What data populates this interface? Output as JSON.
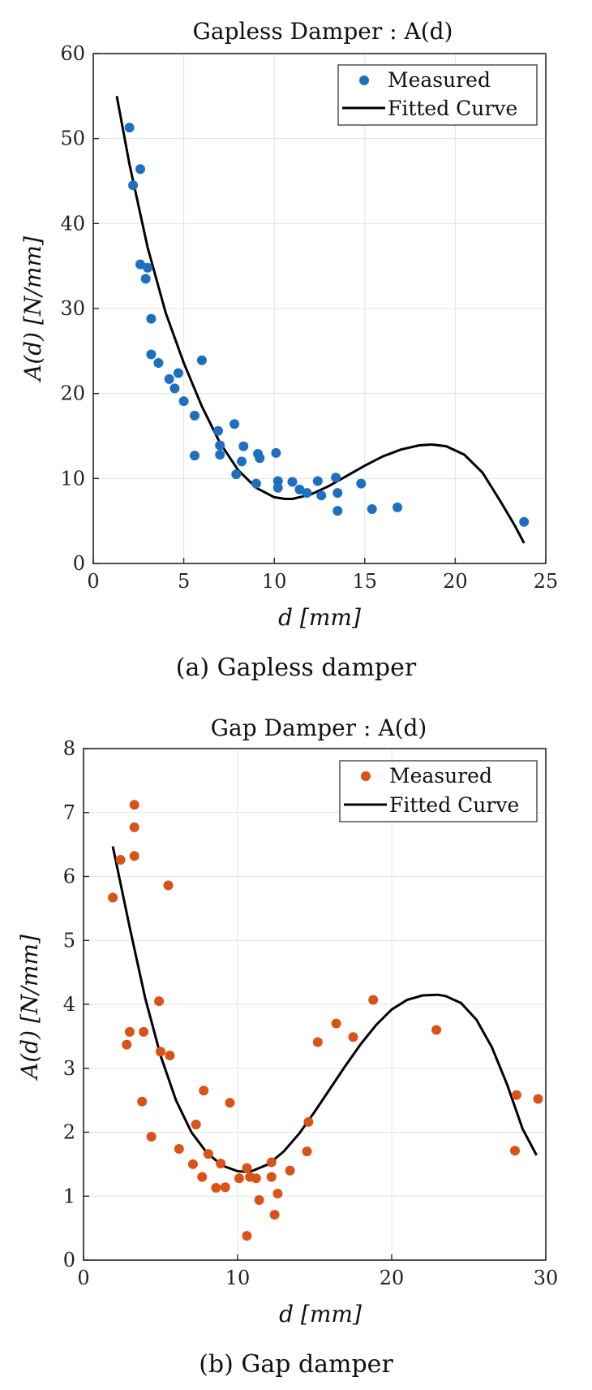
{
  "chart_data": [
    {
      "type": "scatter",
      "title": "Gapless Damper : A(d)",
      "xlabel": "d [mm]",
      "ylabel": "A(d) [N/mm]",
      "caption": "(a)  Gapless  damper",
      "xlim": [
        0,
        25
      ],
      "ylim": [
        0,
        60
      ],
      "xticks": [
        "0",
        "5",
        "10",
        "15",
        "20",
        "25"
      ],
      "yticks": [
        "0",
        "10",
        "20",
        "30",
        "40",
        "50",
        "60"
      ],
      "grid": true,
      "legend_position": "top-right",
      "series": [
        {
          "name": "Measured",
          "kind": "scatter",
          "color": "#1f6fbf",
          "points": [
            [
              2.0,
              51.3
            ],
            [
              2.2,
              44.5
            ],
            [
              2.6,
              46.4
            ],
            [
              2.6,
              35.2
            ],
            [
              2.9,
              33.5
            ],
            [
              3.0,
              34.8
            ],
            [
              3.2,
              28.8
            ],
            [
              3.2,
              24.6
            ],
            [
              3.6,
              23.6
            ],
            [
              4.2,
              21.7
            ],
            [
              4.5,
              20.6
            ],
            [
              4.7,
              22.4
            ],
            [
              5.0,
              19.1
            ],
            [
              5.6,
              17.4
            ],
            [
              5.6,
              12.7
            ],
            [
              6.0,
              23.9
            ],
            [
              6.9,
              15.6
            ],
            [
              7.0,
              13.9
            ],
            [
              7.0,
              12.8
            ],
            [
              7.8,
              16.4
            ],
            [
              7.9,
              10.5
            ],
            [
              8.2,
              12.0
            ],
            [
              8.3,
              13.8
            ],
            [
              9.0,
              9.4
            ],
            [
              9.1,
              12.9
            ],
            [
              9.2,
              12.4
            ],
            [
              10.1,
              13.0
            ],
            [
              10.2,
              9.7
            ],
            [
              10.2,
              8.9
            ],
            [
              11.0,
              9.6
            ],
            [
              11.4,
              8.7
            ],
            [
              11.8,
              8.3
            ],
            [
              12.4,
              9.7
            ],
            [
              12.6,
              8.0
            ],
            [
              13.4,
              10.1
            ],
            [
              13.5,
              8.3
            ],
            [
              13.5,
              6.2
            ],
            [
              14.8,
              9.4
            ],
            [
              15.4,
              6.4
            ],
            [
              16.8,
              6.6
            ],
            [
              23.8,
              4.9
            ]
          ]
        },
        {
          "name": "Fitted Curve",
          "kind": "line",
          "color": "#000000",
          "points": [
            [
              1.3,
              55.0
            ],
            [
              2.0,
              47.0
            ],
            [
              3.0,
              37.2
            ],
            [
              4.0,
              29.5
            ],
            [
              5.0,
              23.6
            ],
            [
              6.0,
              18.5
            ],
            [
              7.0,
              14.2
            ],
            [
              8.0,
              11.0
            ],
            [
              9.0,
              8.9
            ],
            [
              10.0,
              7.8
            ],
            [
              10.6,
              7.6
            ],
            [
              11.0,
              7.6
            ],
            [
              12.0,
              8.1
            ],
            [
              13.0,
              9.1
            ],
            [
              14.0,
              10.3
            ],
            [
              15.0,
              11.5
            ],
            [
              16.0,
              12.6
            ],
            [
              17.0,
              13.4
            ],
            [
              18.0,
              13.9
            ],
            [
              18.7,
              14.0
            ],
            [
              19.5,
              13.8
            ],
            [
              20.5,
              12.8
            ],
            [
              21.5,
              10.7
            ],
            [
              22.5,
              7.3
            ],
            [
              23.3,
              4.4
            ],
            [
              23.8,
              2.4
            ]
          ]
        }
      ]
    },
    {
      "type": "scatter",
      "title": "Gap Damper : A(d)",
      "xlabel": "d [mm]",
      "ylabel": "A(d) [N/mm]",
      "caption": "(b)  Gap  damper",
      "xlim": [
        0,
        30
      ],
      "ylim": [
        0,
        8
      ],
      "xticks": [
        "0",
        "10",
        "20",
        "30"
      ],
      "yticks": [
        "0",
        "1",
        "2",
        "3",
        "4",
        "5",
        "6",
        "7",
        "8"
      ],
      "grid": true,
      "legend_position": "top-right",
      "series": [
        {
          "name": "Measured",
          "kind": "scatter",
          "color": "#d95319",
          "points": [
            [
              1.9,
              5.67
            ],
            [
              2.4,
              6.26
            ],
            [
              2.8,
              3.37
            ],
            [
              3.0,
              3.57
            ],
            [
              3.3,
              7.12
            ],
            [
              3.3,
              6.77
            ],
            [
              3.3,
              6.32
            ],
            [
              3.8,
              2.48
            ],
            [
              3.9,
              3.57
            ],
            [
              4.4,
              1.93
            ],
            [
              4.9,
              4.05
            ],
            [
              5.0,
              3.26
            ],
            [
              5.5,
              5.86
            ],
            [
              5.6,
              3.2
            ],
            [
              6.2,
              1.74
            ],
            [
              7.1,
              1.5
            ],
            [
              7.3,
              2.12
            ],
            [
              7.7,
              1.3
            ],
            [
              7.8,
              2.65
            ],
            [
              8.1,
              1.66
            ],
            [
              8.6,
              1.13
            ],
            [
              8.9,
              1.51
            ],
            [
              9.2,
              1.14
            ],
            [
              9.5,
              2.46
            ],
            [
              10.1,
              1.28
            ],
            [
              10.6,
              0.38
            ],
            [
              10.6,
              1.44
            ],
            [
              10.8,
              1.3
            ],
            [
              11.2,
              1.28
            ],
            [
              11.4,
              0.94
            ],
            [
              12.2,
              1.53
            ],
            [
              12.2,
              1.3
            ],
            [
              12.4,
              0.71
            ],
            [
              12.6,
              1.04
            ],
            [
              13.4,
              1.4
            ],
            [
              14.5,
              1.7
            ],
            [
              14.6,
              2.16
            ],
            [
              15.2,
              3.41
            ],
            [
              16.4,
              3.7
            ],
            [
              17.5,
              3.49
            ],
            [
              18.8,
              4.07
            ],
            [
              22.9,
              3.6
            ],
            [
              28.0,
              1.71
            ],
            [
              28.1,
              2.58
            ],
            [
              29.5,
              2.52
            ]
          ]
        },
        {
          "name": "Fitted Curve",
          "kind": "line",
          "color": "#000000",
          "points": [
            [
              1.9,
              6.47
            ],
            [
              3.0,
              5.2
            ],
            [
              4.0,
              4.1
            ],
            [
              5.0,
              3.2
            ],
            [
              6.0,
              2.5
            ],
            [
              7.0,
              2.0
            ],
            [
              8.0,
              1.68
            ],
            [
              9.0,
              1.48
            ],
            [
              10.0,
              1.39
            ],
            [
              10.5,
              1.38
            ],
            [
              11.0,
              1.4
            ],
            [
              12.0,
              1.5
            ],
            [
              13.0,
              1.7
            ],
            [
              14.0,
              1.98
            ],
            [
              15.0,
              2.32
            ],
            [
              16.0,
              2.68
            ],
            [
              17.0,
              3.04
            ],
            [
              18.0,
              3.38
            ],
            [
              19.0,
              3.68
            ],
            [
              20.0,
              3.92
            ],
            [
              21.0,
              4.07
            ],
            [
              22.0,
              4.14
            ],
            [
              23.0,
              4.15
            ],
            [
              23.5,
              4.13
            ],
            [
              24.5,
              4.02
            ],
            [
              25.5,
              3.76
            ],
            [
              26.5,
              3.33
            ],
            [
              27.5,
              2.74
            ],
            [
              28.5,
              2.05
            ],
            [
              29.4,
              1.64
            ]
          ]
        }
      ]
    }
  ]
}
